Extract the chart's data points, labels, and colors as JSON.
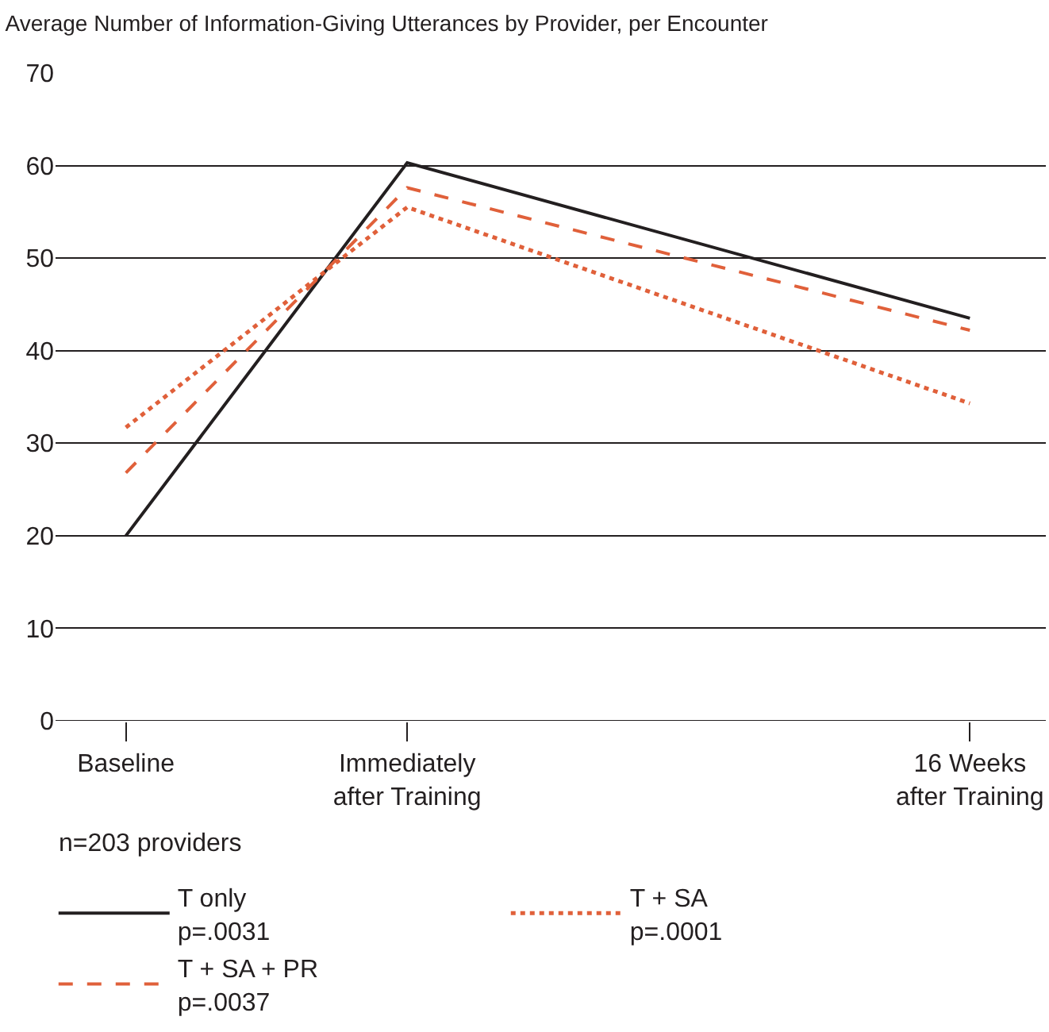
{
  "chart_data": {
    "type": "line",
    "title": "Average Number of Information-Giving Utterances by Provider, per Encounter",
    "categories": [
      "Baseline",
      "Immediately\nafter Training",
      null,
      "16 Weeks\nafter Training"
    ],
    "ylim": [
      0,
      70
    ],
    "yticks": [
      0,
      10,
      20,
      30,
      40,
      50,
      60,
      70
    ],
    "grid": "y",
    "legend": "bottom",
    "marker": "none",
    "series": [
      {
        "name": "T only\np=.0031",
        "color": "#231f20",
        "line_style": "solid",
        "values": [
          20,
          60.3,
          null,
          43.5
        ]
      },
      {
        "name": "T + SA\np=.0001",
        "color": "#e0603a",
        "line_style": "dotted",
        "values": [
          31.7,
          55.5,
          null,
          34.3
        ]
      },
      {
        "name": "T + SA + PR\np=.0037",
        "color": "#e0603a",
        "line_style": "dashed",
        "values": [
          26.8,
          57.6,
          null,
          42.2
        ]
      }
    ],
    "annotations": [
      "n=203 providers"
    ]
  }
}
